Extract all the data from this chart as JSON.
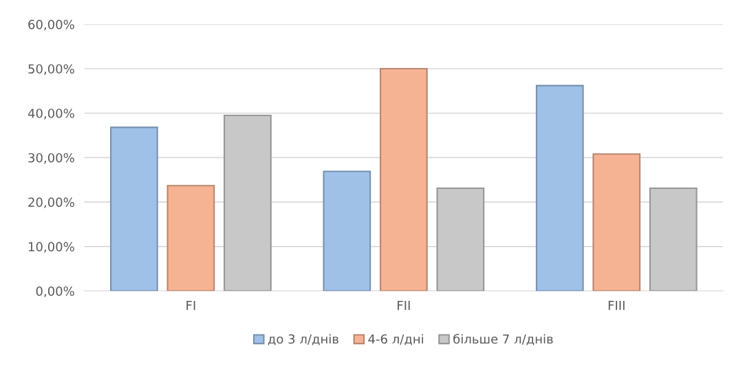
{
  "chart_data": {
    "type": "bar",
    "categories": [
      "FI",
      "FII",
      "FIII"
    ],
    "series": [
      {
        "name": "до 3 л/днів",
        "color": "#9fc1e8",
        "values": [
          36.8,
          26.9,
          46.2
        ]
      },
      {
        "name": "4-6 л/дні",
        "color": "#f6b393",
        "values": [
          23.7,
          50.0,
          30.8
        ]
      },
      {
        "name": "більше 7 л/днів",
        "color": "#c8c8c8",
        "values": [
          39.5,
          23.1,
          23.1
        ]
      }
    ],
    "ylim": [
      0,
      60
    ],
    "yticks": [
      {
        "value": 0,
        "label": "0,00%"
      },
      {
        "value": 10,
        "label": "10,00%"
      },
      {
        "value": 20,
        "label": "20,00%"
      },
      {
        "value": 30,
        "label": "30,00%"
      },
      {
        "value": 40,
        "label": "40,00%"
      },
      {
        "value": 50,
        "label": "50,00%"
      },
      {
        "value": 60,
        "label": "60,00%"
      }
    ],
    "grid": "y",
    "legend": "bottom"
  }
}
